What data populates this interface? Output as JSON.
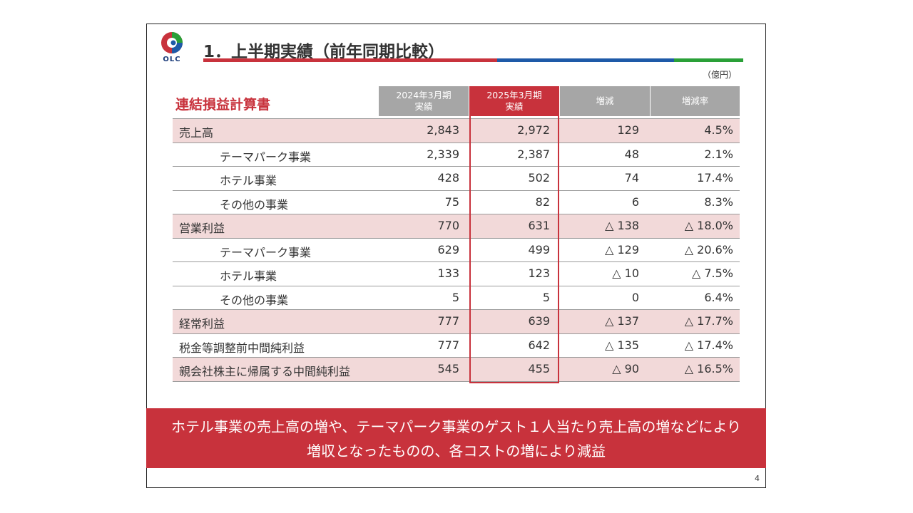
{
  "title": "1．上半期実績（前年同期比較）",
  "logo_text": "OLC",
  "unit": "（億円）",
  "sheet_title": "連結損益計算書",
  "columns": [
    {
      "line1": "2024年3月期",
      "line2": "実績"
    },
    {
      "line1": "2025年3月期",
      "line2": "実績"
    },
    {
      "line1": "増減"
    },
    {
      "line1": "増減率"
    }
  ],
  "rows": [
    {
      "label": "売上高",
      "v1": "2,843",
      "v2": "2,972",
      "v3": "129",
      "v4": "4.5%"
    },
    {
      "label": "テーマパーク事業",
      "v1": "2,339",
      "v2": "2,387",
      "v3": "48",
      "v4": "2.1%"
    },
    {
      "label": "ホテル事業",
      "v1": "428",
      "v2": "502",
      "v3": "74",
      "v4": "17.4%"
    },
    {
      "label": "その他の事業",
      "v1": "75",
      "v2": "82",
      "v3": "6",
      "v4": "8.3%"
    },
    {
      "label": "営業利益",
      "v1": "770",
      "v2": "631",
      "v3": "△ 138",
      "v4": "△ 18.0%"
    },
    {
      "label": "テーマパーク事業",
      "v1": "629",
      "v2": "499",
      "v3": "△ 129",
      "v4": "△ 20.6%"
    },
    {
      "label": "ホテル事業",
      "v1": "133",
      "v2": "123",
      "v3": "△ 10",
      "v4": "△ 7.5%"
    },
    {
      "label": "その他の事業",
      "v1": "5",
      "v2": "5",
      "v3": "0",
      "v4": "6.4%"
    },
    {
      "label": "経常利益",
      "v1": "777",
      "v2": "639",
      "v3": "△ 137",
      "v4": "△ 17.7%"
    },
    {
      "label": "税金等調整前中間純利益",
      "v1": "777",
      "v2": "642",
      "v3": "△ 135",
      "v4": "△ 17.4%"
    },
    {
      "label": "親会社株主に帰属する中間純利益",
      "v1": "545",
      "v2": "455",
      "v3": "△ 90",
      "v4": "△ 16.5%"
    }
  ],
  "banner": {
    "line1": "ホテル事業の売上高の増や、テーマパーク事業のゲスト１人当たり売上高の増などにより",
    "line2": "増収となったものの、各コストの増により減益"
  },
  "page_number": "4",
  "colors": {
    "accent_red": "#c8323c",
    "accent_blue": "#1e5aa8",
    "accent_green": "#2aa038",
    "highlight_row": "#f2d9d9",
    "header_gray": "#a6a6a6"
  }
}
